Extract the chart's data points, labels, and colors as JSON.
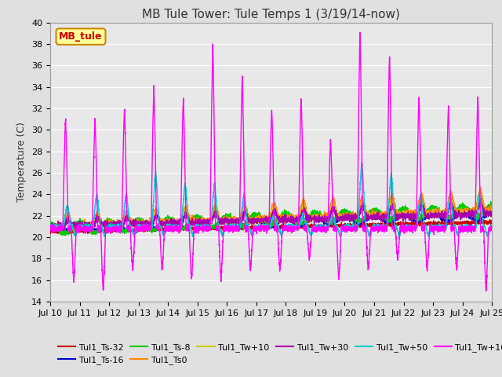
{
  "title": "MB Tule Tower: Tule Temps 1 (3/19/14-now)",
  "ylabel": "Temperature (C)",
  "ylim": [
    14,
    40
  ],
  "yticks": [
    14,
    16,
    18,
    20,
    22,
    24,
    26,
    28,
    30,
    32,
    34,
    36,
    38,
    40
  ],
  "x_labels": [
    "Jul 10",
    "Jul 11",
    "Jul 12",
    "Jul 13",
    "Jul 14",
    "Jul 15",
    "Jul 16",
    "Jul 17",
    "Jul 18",
    "Jul 19",
    "Jul 20",
    "Jul 21",
    "Jul 22",
    "Jul 23",
    "Jul 24",
    "Jul 25"
  ],
  "series": {
    "Tul1_Ts-32": {
      "color": "#cc0000",
      "lw": 1.0
    },
    "Tul1_Ts-16": {
      "color": "#0000cc",
      "lw": 1.0
    },
    "Tul1_Ts-8": {
      "color": "#00cc00",
      "lw": 1.0
    },
    "Tul1_Ts0": {
      "color": "#ff8800",
      "lw": 1.0
    },
    "Tul1_Tw+10": {
      "color": "#cccc00",
      "lw": 1.0
    },
    "Tul1_Tw+30": {
      "color": "#aa00aa",
      "lw": 1.0
    },
    "Tul1_Tw+50": {
      "color": "#00cccc",
      "lw": 1.0
    },
    "Tul1_Tw+100": {
      "color": "#ff00ff",
      "lw": 1.0
    }
  },
  "annotation_box": {
    "text": "MB_tule",
    "facecolor": "#ffff99",
    "edgecolor": "#cc8800",
    "textcolor": "#cc0000",
    "fontsize": 9
  },
  "bg_color": "#e8e8e8",
  "grid_color": "#ffffff",
  "title_fontsize": 11,
  "tick_fontsize": 8,
  "legend_fontsize": 8,
  "air_peaks_up": [
    31,
    31,
    32,
    34,
    33,
    38,
    35,
    32,
    33,
    29,
    39,
    37,
    33,
    32,
    33
  ],
  "air_peaks_down": [
    16,
    15,
    17,
    17,
    16,
    16,
    17,
    17,
    18,
    16,
    17,
    18,
    17,
    17,
    15
  ],
  "cyan_peaks": [
    23,
    24,
    24,
    26,
    25,
    25,
    24,
    22,
    22,
    22,
    27,
    26,
    24,
    24,
    24
  ]
}
